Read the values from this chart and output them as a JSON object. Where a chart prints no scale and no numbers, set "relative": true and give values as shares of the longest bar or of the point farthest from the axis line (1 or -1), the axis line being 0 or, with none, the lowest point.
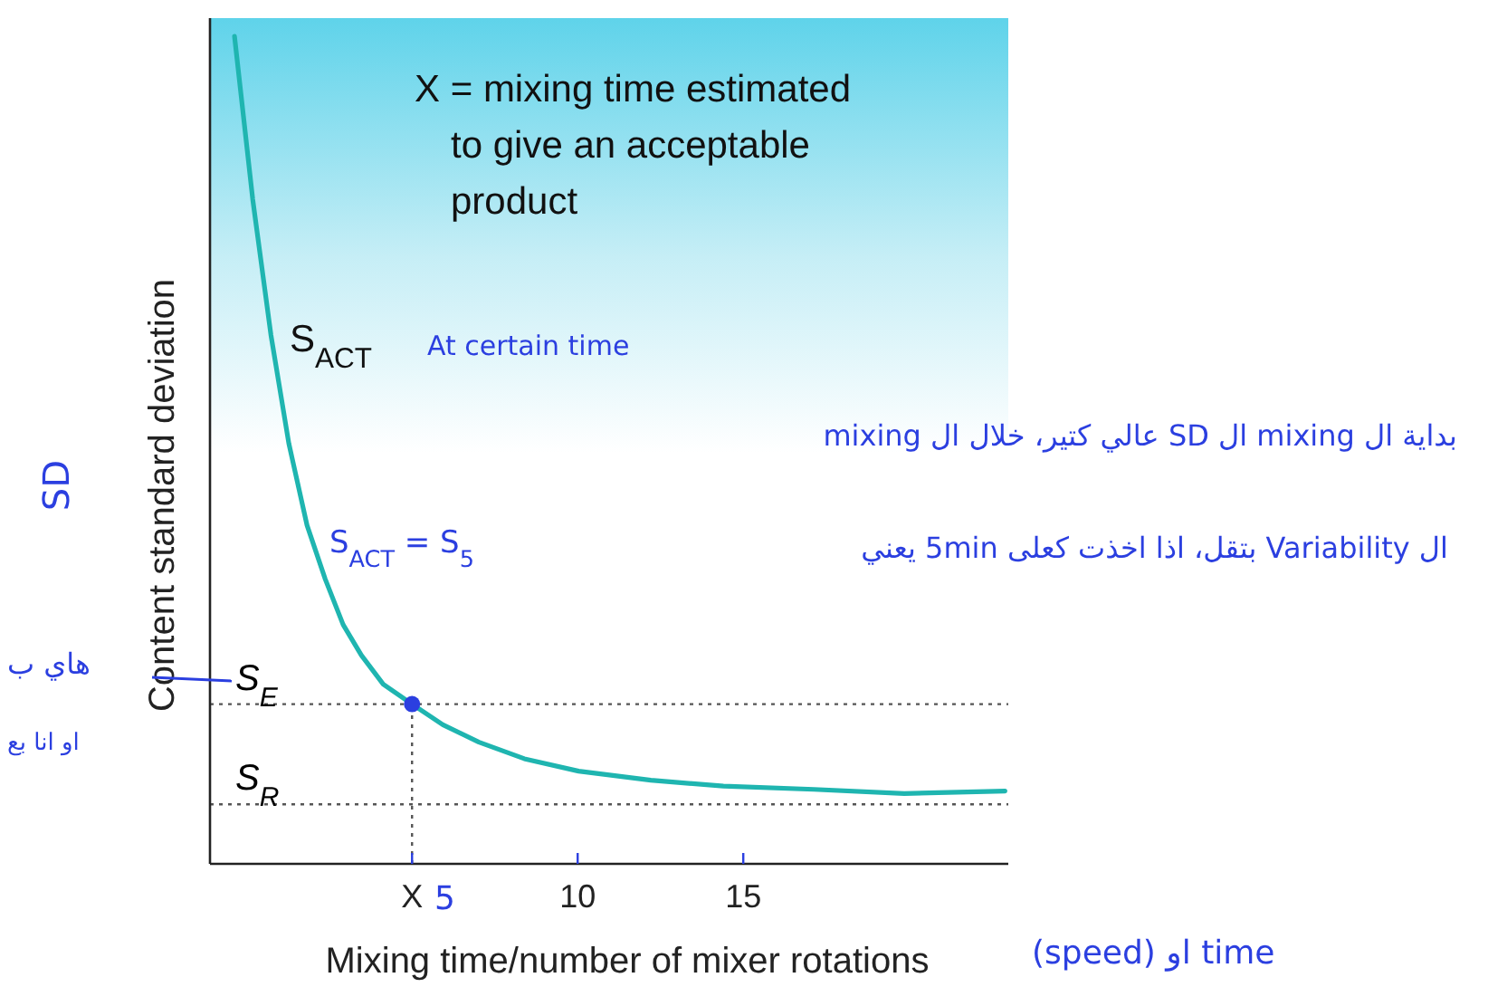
{
  "chart_data": {
    "type": "line",
    "relative": true,
    "xlabel": "Mixing time/number of mixer rotations",
    "ylabel": "Content standard deviation",
    "x": [
      -0.36,
      0.19,
      0.74,
      1.28,
      1.83,
      2.38,
      2.92,
      3.47,
      4.13,
      5.0,
      5.93,
      7.02,
      8.39,
      10.03,
      12.21,
      14.4,
      17.13,
      19.86,
      22.9
    ],
    "xlim": [
      -1.1,
      23
    ],
    "xticks": [
      {
        "value": 5,
        "label": "X"
      },
      10,
      15
    ],
    "series": [
      {
        "color": "#1fb5b0",
        "values": [
          1.0,
          0.803,
          0.639,
          0.508,
          0.409,
          0.344,
          0.289,
          0.252,
          0.217,
          0.193,
          0.168,
          0.147,
          0.127,
          0.112,
          0.101,
          0.094,
          0.09,
          0.085,
          0.088
        ]
      },
      {
        "type": "scatter",
        "color": "#2b3fe0",
        "x": [
          5.0
        ],
        "values": [
          0.193
        ]
      }
    ],
    "ref_lines": [
      {
        "axis": "y",
        "value": 0.193,
        "label": "S$_{E}$",
        "color": "#555555",
        "line_style": "dotted"
      },
      {
        "axis": "y",
        "value": 0.072,
        "label": "S$_{R}$",
        "color": "#555555",
        "line_style": "dotted"
      },
      {
        "axis": "x",
        "value": 5,
        "color": "#555555",
        "line_style": "dotted"
      }
    ],
    "annotations": [
      "X = mixing time estimated\nto give an acceptable\nproduct",
      "S$_{ACT}$",
      "At certain time",
      "S$_{ACT}$ = S$_{5}$",
      "SD",
      "بداية ال mixing ال SD عالي كتير، خلال ال mixing",
      "ال Variability بتقل، اذا اخذت كعلى 5min يعني",
      "هاي ب",
      "او انا بع",
      "5",
      "(speed) او time"
    ]
  }
}
